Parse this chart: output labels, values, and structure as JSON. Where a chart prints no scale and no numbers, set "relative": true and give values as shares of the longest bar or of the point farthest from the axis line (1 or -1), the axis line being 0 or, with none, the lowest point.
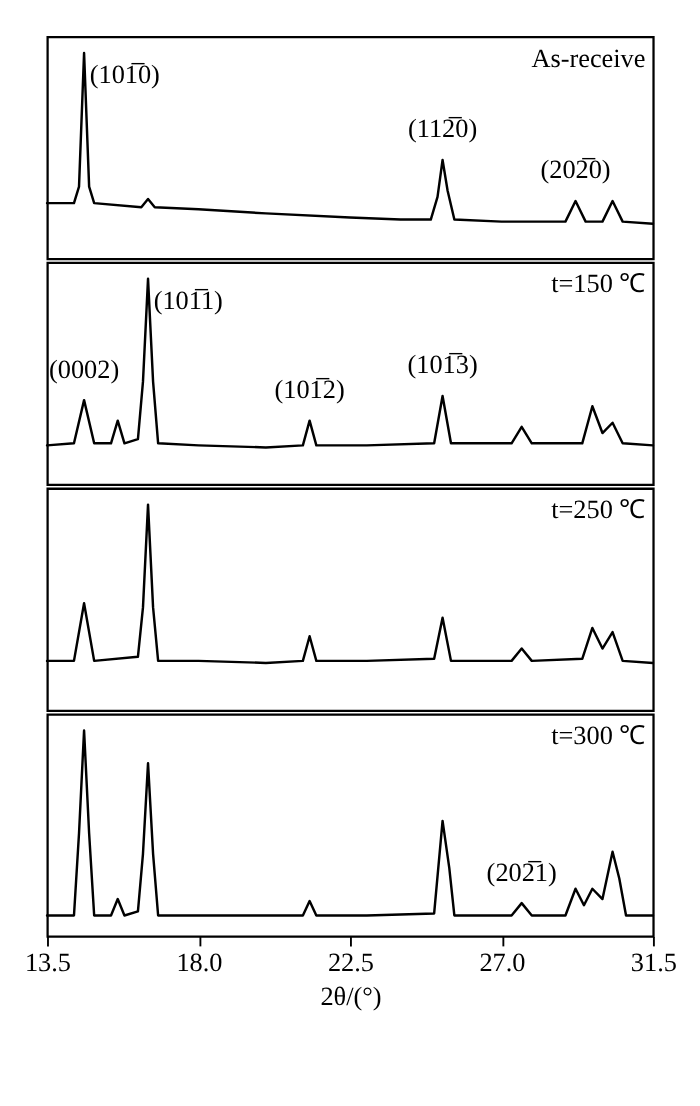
{
  "chart_data": [
    {
      "type": "line",
      "title": "As-receive",
      "relative": true,
      "xlim": [
        13.5,
        31.5
      ],
      "tick_labels": false,
      "grid": false,
      "marker": "none",
      "line_style": "solid",
      "series": [
        {
          "color": "#000000",
          "x": [
            13.5,
            14.3,
            14.45,
            14.6,
            14.75,
            14.9,
            16.3,
            16.5,
            16.7,
            18.0,
            20.0,
            22.5,
            24.0,
            24.9,
            25.1,
            25.25,
            25.4,
            25.6,
            27.0,
            28.9,
            29.2,
            29.5,
            30.0,
            30.3,
            30.6,
            31.5
          ],
          "values": [
            0.27,
            0.27,
            0.35,
            1.0,
            0.35,
            0.27,
            0.25,
            0.29,
            0.25,
            0.24,
            0.22,
            0.2,
            0.19,
            0.19,
            0.3,
            0.48,
            0.33,
            0.19,
            0.18,
            0.18,
            0.28,
            0.18,
            0.18,
            0.28,
            0.18,
            0.17
          ]
        }
      ],
      "annotations": [
        {
          "text": "(101̅0)",
          "x": 14.6,
          "y": 1.0
        },
        {
          "text": "(112̅0)",
          "x": 25.25,
          "y": 0.48
        },
        {
          "text": "(202̅0)",
          "x": 29.2,
          "y": 0.28
        }
      ]
    },
    {
      "type": "line",
      "title": "t=150 ℃",
      "relative": true,
      "xlim": [
        13.5,
        31.5
      ],
      "tick_labels": false,
      "grid": false,
      "marker": "none",
      "line_style": "solid",
      "series": [
        {
          "color": "#000000",
          "x": [
            13.5,
            14.3,
            14.6,
            14.9,
            15.4,
            15.6,
            15.8,
            16.2,
            16.35,
            16.5,
            16.65,
            16.8,
            18.0,
            20.0,
            21.1,
            21.3,
            21.5,
            23.0,
            25.0,
            25.25,
            25.5,
            27.3,
            27.6,
            27.9,
            29.4,
            29.7,
            30.0,
            30.3,
            30.6,
            31.5
          ],
          "values": [
            0.19,
            0.2,
            0.41,
            0.2,
            0.2,
            0.31,
            0.2,
            0.22,
            0.5,
            1.0,
            0.5,
            0.2,
            0.19,
            0.18,
            0.19,
            0.31,
            0.19,
            0.19,
            0.2,
            0.43,
            0.2,
            0.2,
            0.28,
            0.2,
            0.2,
            0.38,
            0.25,
            0.3,
            0.2,
            0.19
          ]
        }
      ],
      "annotations": [
        {
          "text": "(0002)",
          "x": 14.6,
          "y": 0.41
        },
        {
          "text": "(101̅1)",
          "x": 16.5,
          "y": 1.0
        },
        {
          "text": "(101̅2)",
          "x": 21.3,
          "y": 0.31
        },
        {
          "text": "(101̅3)",
          "x": 25.25,
          "y": 0.43
        }
      ]
    },
    {
      "type": "line",
      "title": "t=250 ℃",
      "relative": true,
      "xlim": [
        13.5,
        31.5
      ],
      "tick_labels": false,
      "grid": false,
      "marker": "none",
      "line_style": "solid",
      "series": [
        {
          "color": "#000000",
          "x": [
            13.5,
            14.3,
            14.6,
            14.9,
            16.2,
            16.35,
            16.5,
            16.65,
            16.8,
            18.0,
            20.0,
            21.1,
            21.3,
            21.5,
            23.0,
            25.0,
            25.25,
            25.5,
            27.3,
            27.6,
            27.9,
            29.4,
            29.7,
            30.0,
            30.3,
            30.6,
            31.5
          ],
          "values": [
            0.24,
            0.24,
            0.52,
            0.24,
            0.26,
            0.5,
            1.0,
            0.5,
            0.24,
            0.24,
            0.23,
            0.24,
            0.36,
            0.24,
            0.24,
            0.25,
            0.45,
            0.24,
            0.24,
            0.3,
            0.24,
            0.25,
            0.4,
            0.3,
            0.38,
            0.24,
            0.23
          ]
        }
      ]
    },
    {
      "type": "line",
      "title": "t=300 ℃",
      "relative": true,
      "xlim": [
        13.5,
        31.5
      ],
      "xticks": [
        13.5,
        {
          "value": 18,
          "label": "18.0"
        },
        22.5,
        {
          "value": 27,
          "label": "27.0"
        },
        31.5
      ],
      "xlabel": "2θ/(°)",
      "tick_labels": "x",
      "grid": false,
      "marker": "none",
      "line_style": "solid",
      "series": [
        {
          "color": "#000000",
          "x": [
            13.5,
            14.3,
            14.45,
            14.6,
            14.75,
            14.9,
            15.4,
            15.6,
            15.8,
            16.2,
            16.35,
            16.5,
            16.65,
            16.8,
            18.0,
            20.0,
            21.1,
            21.3,
            21.5,
            23.0,
            25.0,
            25.25,
            25.45,
            25.6,
            27.3,
            27.6,
            27.9,
            28.9,
            29.2,
            29.45,
            29.7,
            30.0,
            30.3,
            30.5,
            30.7,
            31.5
          ],
          "values": [
            0.1,
            0.1,
            0.5,
            1.0,
            0.5,
            0.1,
            0.1,
            0.18,
            0.1,
            0.12,
            0.4,
            0.84,
            0.4,
            0.1,
            0.1,
            0.1,
            0.1,
            0.17,
            0.1,
            0.1,
            0.11,
            0.56,
            0.33,
            0.1,
            0.1,
            0.16,
            0.1,
            0.1,
            0.23,
            0.15,
            0.23,
            0.18,
            0.41,
            0.28,
            0.1,
            0.1
          ]
        }
      ],
      "annotations": [
        {
          "text": "(202̅1)",
          "x": 27.6,
          "y": 0.16
        }
      ]
    }
  ]
}
